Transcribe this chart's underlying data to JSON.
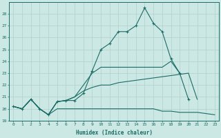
{
  "xlabel": "Humidex (Indice chaleur)",
  "background_color": "#cce8e4",
  "grid_color": "#b0d0cc",
  "line_color": "#1a6b64",
  "x_values": [
    0,
    1,
    2,
    3,
    4,
    5,
    6,
    7,
    8,
    9,
    10,
    11,
    12,
    13,
    14,
    15,
    16,
    17,
    18,
    19,
    20,
    21,
    22,
    23
  ],
  "line1_y": [
    20.2,
    20.0,
    20.8,
    20.0,
    19.5,
    20.6,
    20.7,
    20.7,
    21.3,
    23.2,
    25.0,
    25.5,
    26.5,
    26.5,
    27.0,
    28.5,
    27.2,
    26.5,
    24.2,
    23.0,
    20.8,
    null,
    null,
    null
  ],
  "line2_y": [
    20.2,
    20.0,
    20.8,
    20.0,
    19.5,
    20.6,
    20.7,
    21.0,
    22.0,
    23.0,
    23.5,
    23.5,
    23.5,
    23.5,
    23.5,
    23.5,
    23.5,
    23.5,
    24.0,
    23.0,
    null,
    null,
    null,
    null
  ],
  "line3_y": [
    20.2,
    20.0,
    20.8,
    20.0,
    19.5,
    20.6,
    20.7,
    21.0,
    21.5,
    21.8,
    22.0,
    22.0,
    22.2,
    22.3,
    22.4,
    22.5,
    22.6,
    22.7,
    22.8,
    22.9,
    23.0,
    20.8,
    null,
    null
  ],
  "line4_y": [
    20.2,
    20.0,
    20.8,
    20.0,
    19.5,
    20.0,
    20.0,
    20.0,
    20.0,
    20.0,
    20.0,
    20.0,
    20.0,
    20.0,
    20.0,
    20.0,
    20.0,
    19.8,
    19.8,
    19.7,
    19.7,
    19.7,
    19.6,
    19.5
  ],
  "ylim": [
    19,
    29
  ],
  "yticks": [
    19,
    20,
    21,
    22,
    23,
    24,
    25,
    26,
    27,
    28
  ],
  "xlim": [
    -0.5,
    23.5
  ]
}
